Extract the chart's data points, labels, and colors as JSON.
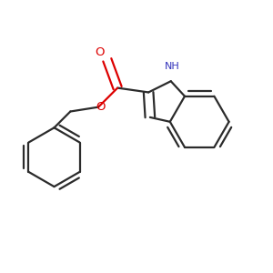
{
  "bg_color": "#ffffff",
  "bond_color": "#2b2b2b",
  "o_color": "#dd0000",
  "n_color": "#3333bb",
  "line_width": 1.6,
  "dbo": 0.018,
  "figsize": [
    3.0,
    3.0
  ],
  "dpi": 100,
  "xlim": [
    0.0,
    1.0
  ],
  "ylim": [
    0.0,
    1.0
  ]
}
